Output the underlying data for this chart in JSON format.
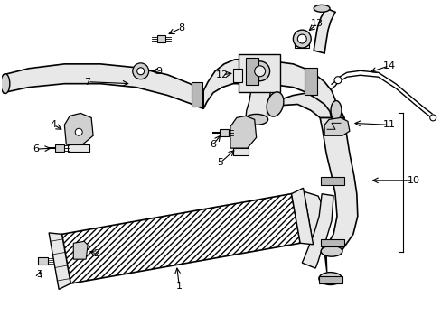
{
  "bg": "#ffffff",
  "lc": "#000000",
  "fig_w": 4.89,
  "fig_h": 3.6,
  "dpi": 100,
  "gray_light": "#e8e8e8",
  "gray_mid": "#d0d0d0",
  "gray_dark": "#b8b8b8"
}
